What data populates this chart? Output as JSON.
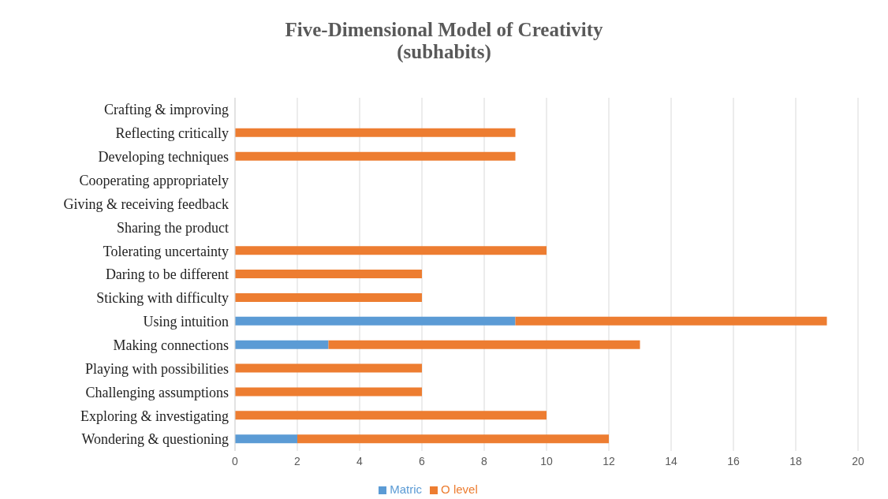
{
  "chart_data": {
    "type": "bar",
    "orientation": "horizontal",
    "stacked": true,
    "title": "Five-Dimensional Model of Creativity\n(subhabits)",
    "categories": [
      "Crafting & improving",
      "Reflecting critically",
      "Developing techniques",
      "Cooperating appropriately",
      "Giving & receiving feedback",
      "Sharing the product",
      "Tolerating uncertainty",
      "Daring to be different",
      "Sticking with difficulty",
      "Using intuition",
      "Making connections",
      "Playing with possibilities",
      "Challenging assumptions",
      "Exploring & investigating",
      "Wondering & questioning"
    ],
    "series": [
      {
        "name": "Matric",
        "color": "#5b9bd5",
        "values": [
          0,
          0,
          0,
          0,
          0,
          0,
          0,
          0,
          0,
          9,
          3,
          0,
          0,
          0,
          2
        ]
      },
      {
        "name": "O level",
        "color": "#ed7d31",
        "values": [
          0,
          9,
          9,
          0,
          0,
          0,
          10,
          6,
          6,
          10,
          10,
          6,
          6,
          10,
          10
        ]
      }
    ],
    "xlim": [
      0,
      20
    ],
    "xticks": [
      0,
      2,
      4,
      6,
      8,
      10,
      12,
      14,
      16,
      18,
      20
    ],
    "grid": "x",
    "legend": "bottom"
  }
}
